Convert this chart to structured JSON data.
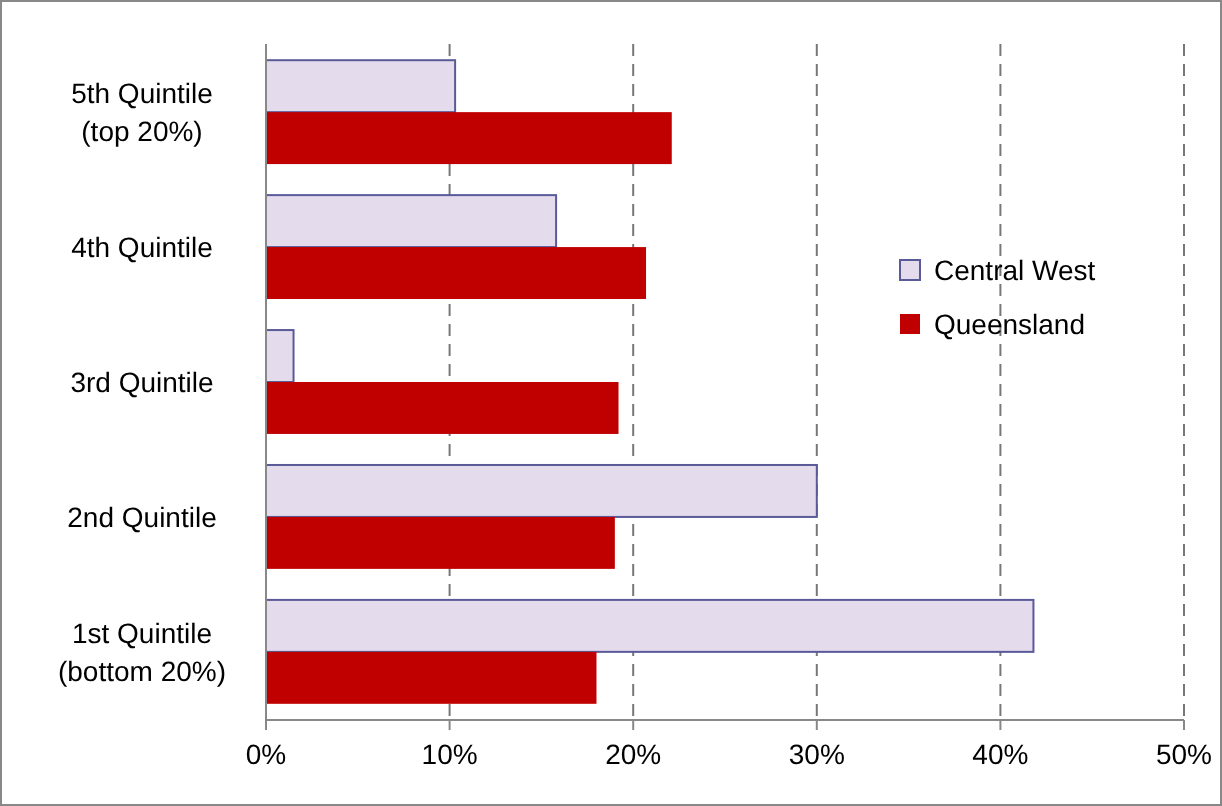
{
  "chart_data": {
    "type": "bar",
    "orientation": "horizontal",
    "categories": [
      "5th Quintile\n(top 20%)",
      "4th Quintile",
      "3rd Quintile",
      "2nd Quintile",
      "1st Quintile\n(bottom 20%)"
    ],
    "series": [
      {
        "name": "Central West",
        "color": "#e4dcec",
        "values": [
          10.3,
          15.8,
          1.5,
          30.0,
          41.8
        ]
      },
      {
        "name": "Queensland",
        "color": "#c00000",
        "values": [
          22.1,
          20.7,
          19.2,
          19.0,
          18.0
        ]
      }
    ],
    "xlim": [
      0,
      50
    ],
    "xticks": [
      {
        "value": 0,
        "label": "0%"
      },
      {
        "value": 10,
        "label": "10%"
      },
      {
        "value": 20,
        "label": "20%"
      },
      {
        "value": 30,
        "label": "30%"
      },
      {
        "value": 40,
        "label": "40%"
      },
      {
        "value": 50,
        "label": "50%"
      }
    ],
    "grid": "x",
    "legend": "right"
  }
}
